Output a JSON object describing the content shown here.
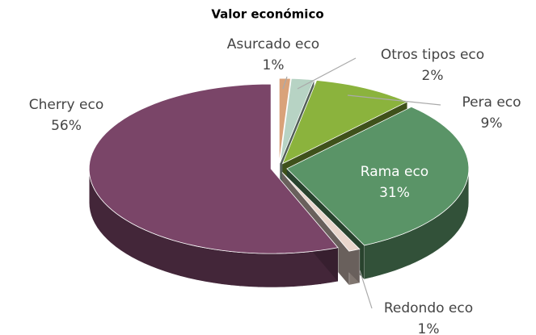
{
  "chart_data": {
    "type": "pie",
    "title": "Valor económico",
    "categories": [
      "Asurcado eco",
      "Otros tipos eco",
      "Pera eco",
      "Rama eco",
      "Redondo eco",
      "Cherry eco"
    ],
    "values": [
      1,
      2,
      9,
      31,
      1,
      56
    ],
    "value_labels": [
      "1%",
      "2%",
      "9%",
      "31%",
      "1%",
      "56%"
    ],
    "colors": [
      "#d9a27a",
      "#b7d3c4",
      "#8bb33d",
      "#5a9467",
      "#e9d6cc",
      "#7a4568"
    ]
  }
}
